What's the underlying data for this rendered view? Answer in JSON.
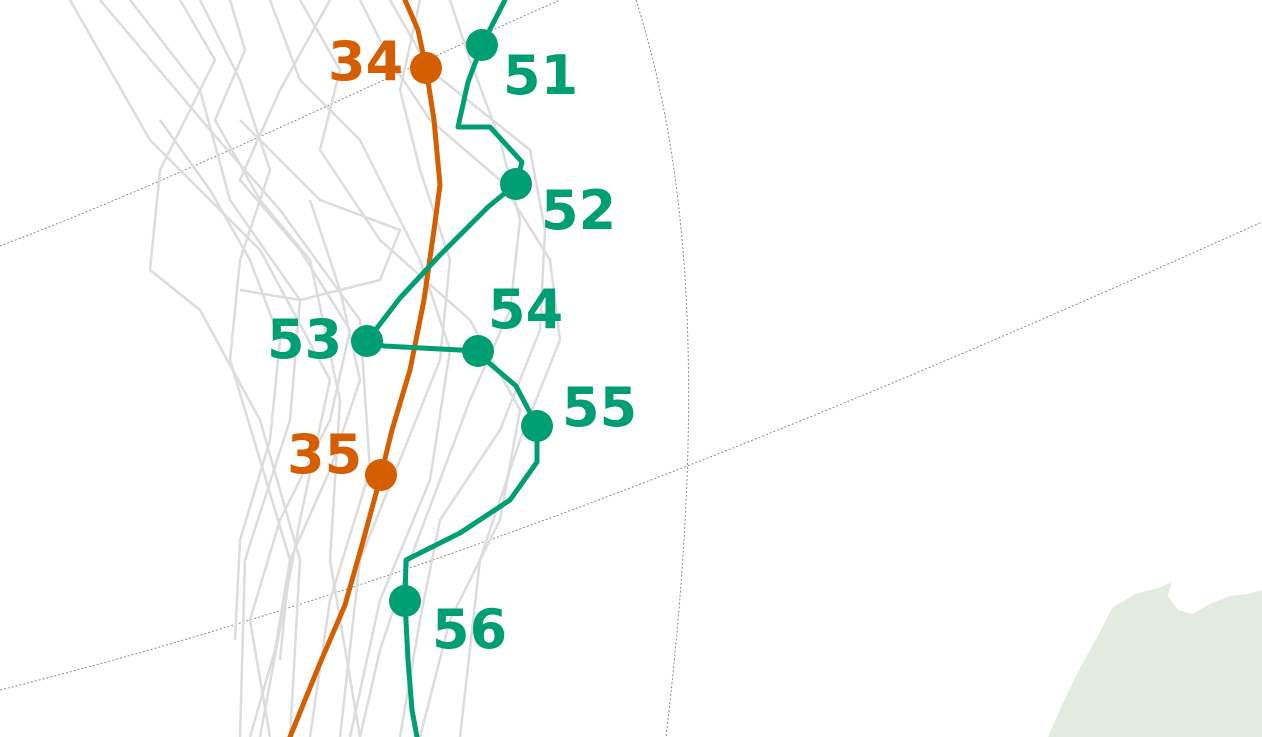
{
  "map": {
    "colors": {
      "track_orange": "#d55e00",
      "track_green": "#009e73",
      "history_tracks": "#dcdcdc",
      "graticule": "#8a8a8a",
      "land": "#e3ebe0",
      "background": "#ffffff"
    },
    "orange_track": {
      "points": [
        {
          "label": "34"
        },
        {
          "label": "35"
        }
      ]
    },
    "green_track": {
      "points": [
        {
          "label": "51"
        },
        {
          "label": "52"
        },
        {
          "label": "53"
        },
        {
          "label": "54"
        },
        {
          "label": "55"
        },
        {
          "label": "56"
        }
      ]
    }
  }
}
